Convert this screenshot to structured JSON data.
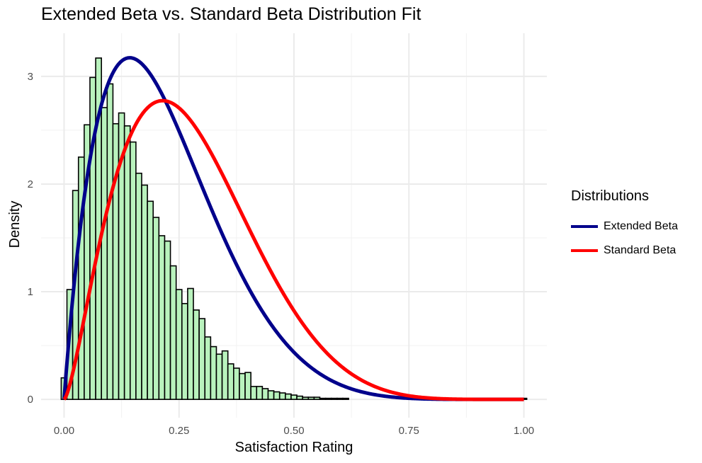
{
  "chart_data": {
    "type": "histogram",
    "title": "Extended Beta vs. Standard Beta Distribution Fit",
    "xlabel": "Satisfaction Rating",
    "ylabel": "Density",
    "xlim": [
      -0.05,
      1.05
    ],
    "ylim": [
      -0.17,
      3.4
    ],
    "x_ticks": [
      0.0,
      0.25,
      0.5,
      0.75,
      1.0
    ],
    "x_tick_labels": [
      "0.00",
      "0.25",
      "0.50",
      "0.75",
      "1.00"
    ],
    "y_ticks": [
      0,
      1,
      2,
      3
    ],
    "y_tick_labels": [
      "0",
      "1",
      "2",
      "3"
    ],
    "grid": true,
    "histogram": {
      "fill": "#b9f2bd",
      "edge": "#000000",
      "bin_width": 0.0125,
      "bins_start": -0.00625,
      "densities": [
        0.2,
        1.02,
        1.94,
        2.25,
        2.55,
        2.99,
        3.17,
        2.71,
        2.93,
        2.56,
        2.66,
        2.54,
        2.39,
        2.1,
        1.99,
        1.84,
        1.69,
        1.52,
        1.47,
        1.24,
        1.02,
        0.89,
        1.03,
        0.83,
        0.75,
        0.58,
        0.49,
        0.42,
        0.45,
        0.33,
        0.29,
        0.24,
        0.25,
        0.12,
        0.12,
        0.1,
        0.08,
        0.07,
        0.06,
        0.05,
        0.04,
        0.03,
        0.02,
        0.02,
        0.02,
        0.01,
        0.01,
        0.01,
        0.01,
        0.01,
        0.0,
        0.0,
        0.0,
        0.0,
        0.0,
        0.0,
        0.0,
        0.0,
        0.0,
        0.0,
        0.0,
        0.0,
        0.0,
        0.0,
        0.0,
        0.0,
        0.0,
        0.0,
        0.0,
        0.0,
        0.0,
        0.0,
        0.0,
        0.0,
        0.0,
        0.0,
        0.0,
        0.0,
        0.0,
        0.0,
        0.01
      ]
    },
    "legend_title": "Distributions",
    "legend_position": "right",
    "series": [
      {
        "name": "Extended Beta",
        "color": "#00008b",
        "alpha": 2.0,
        "beta": 7.0
      },
      {
        "name": "Standard Beta",
        "color": "#ff0000",
        "alpha": 2.5,
        "beta": 6.5
      }
    ]
  }
}
